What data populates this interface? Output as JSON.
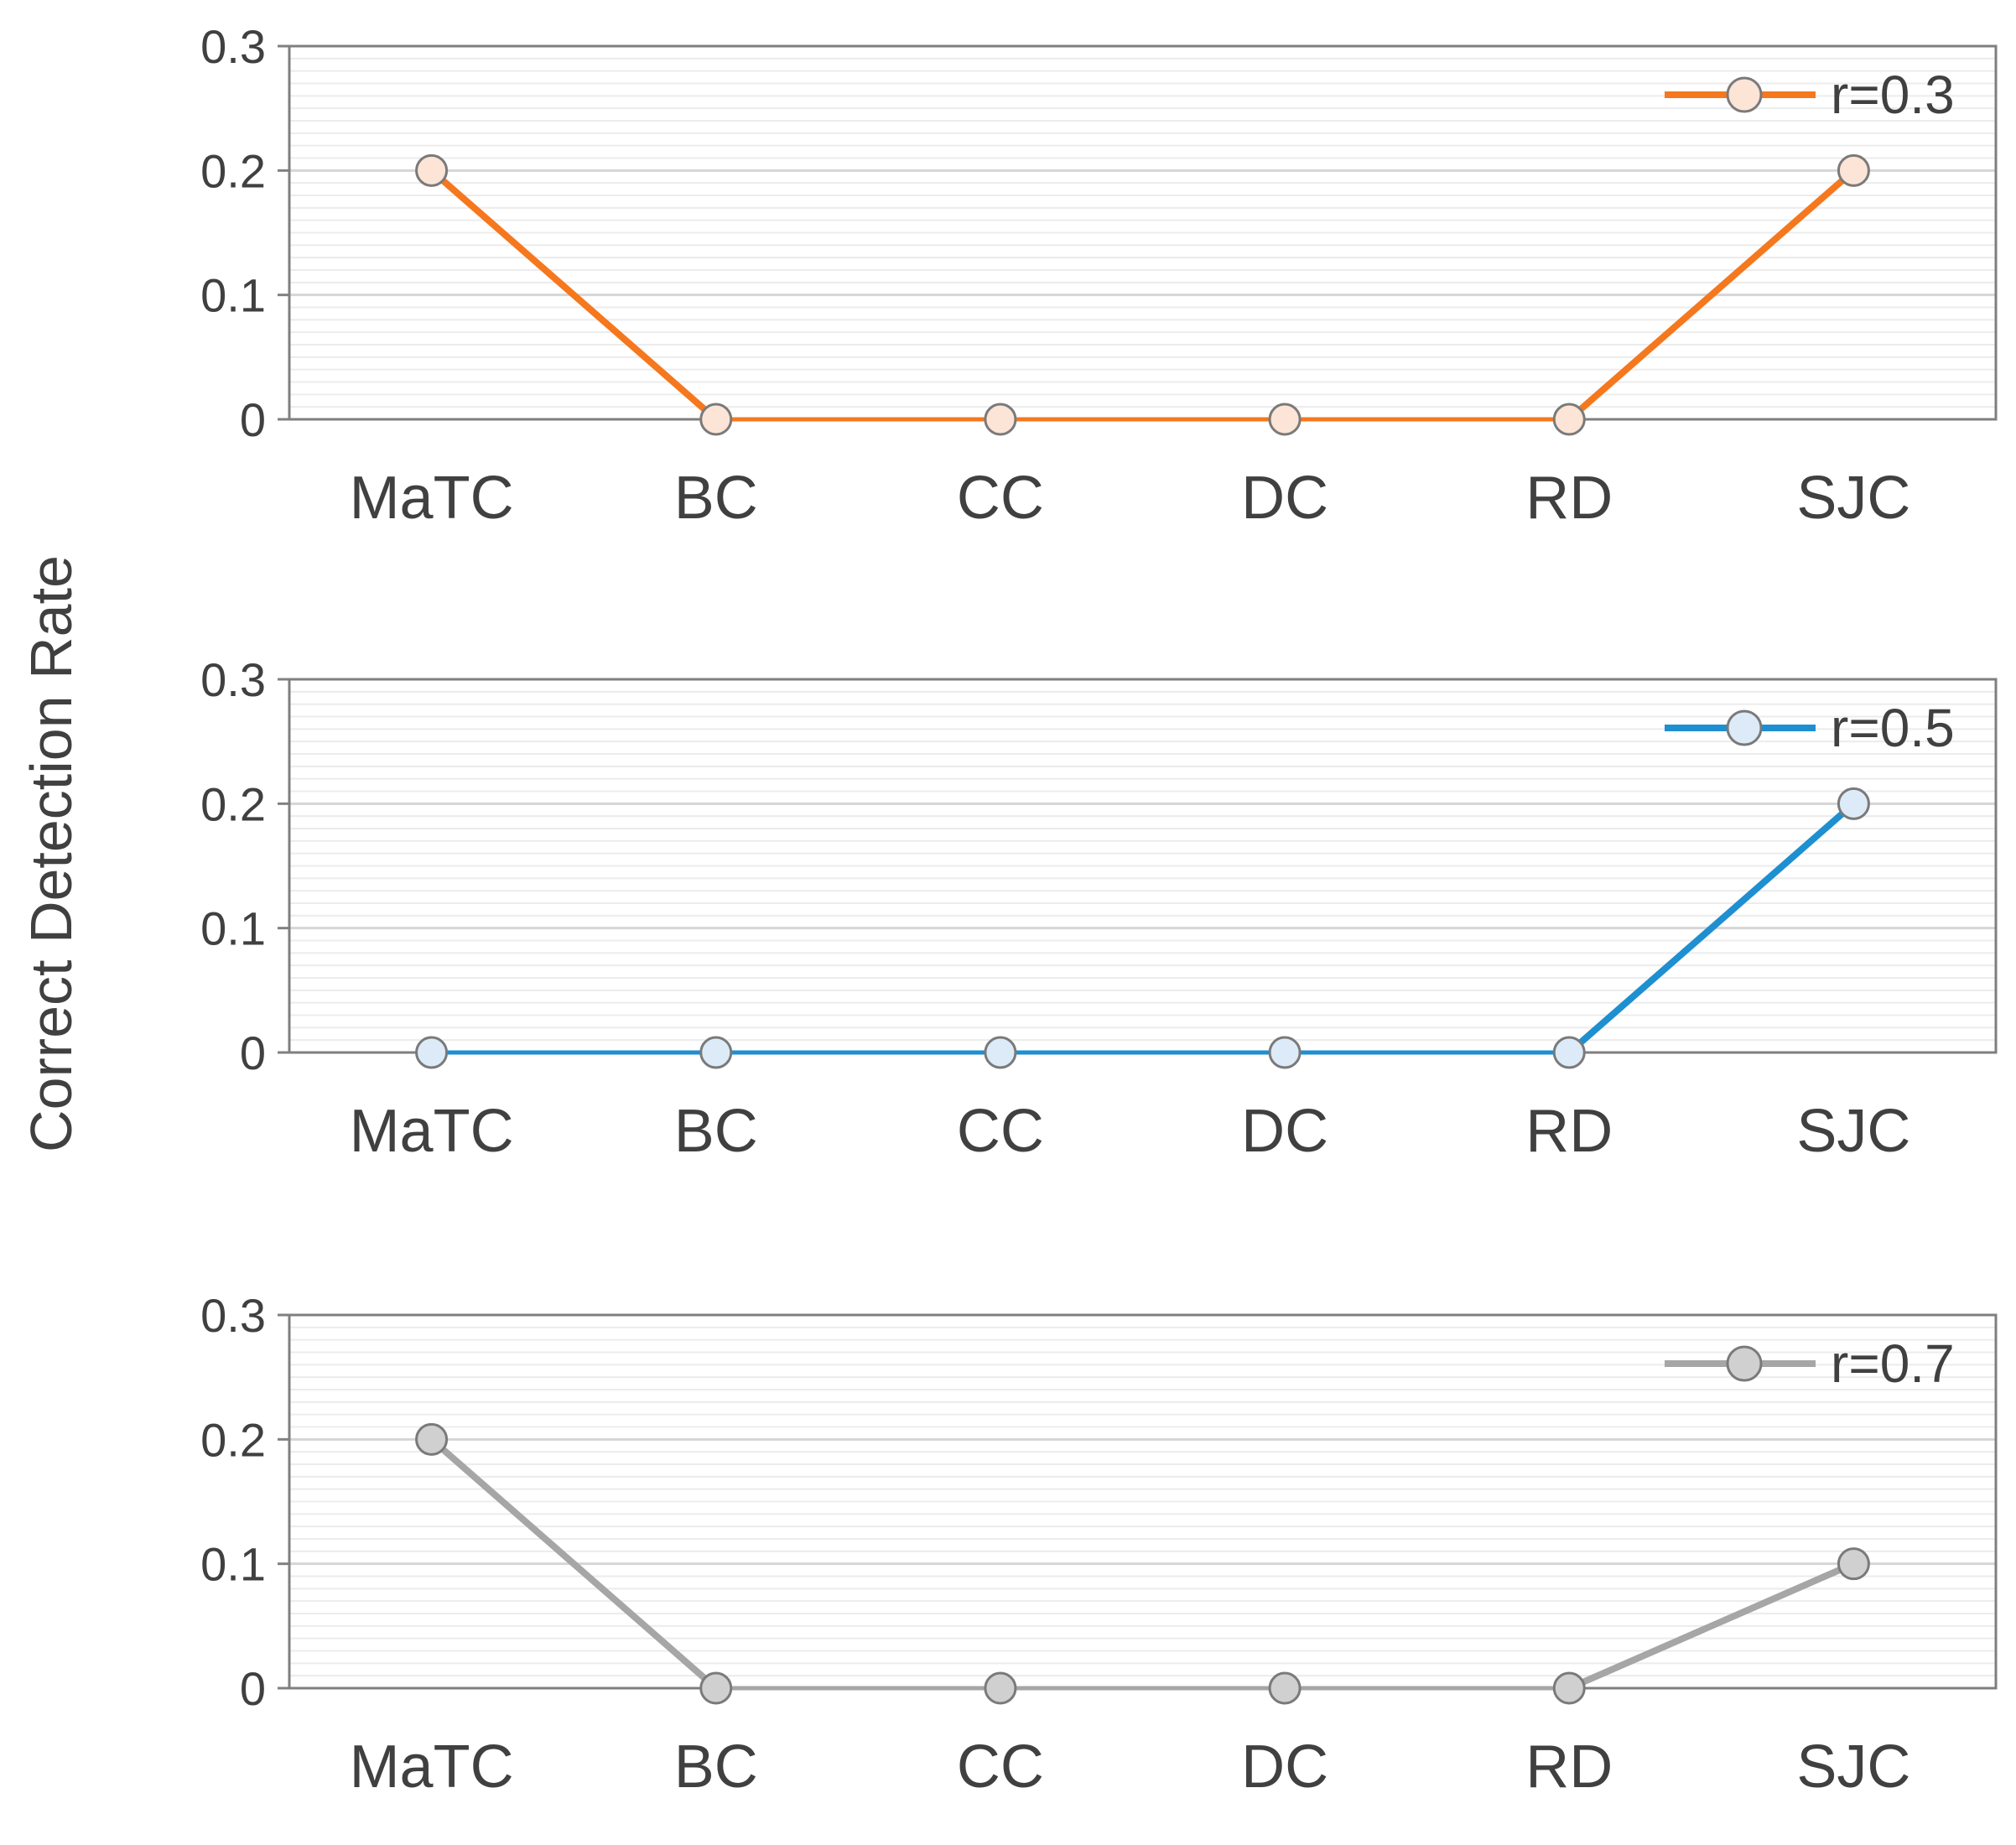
{
  "y_axis_label": "Correct Detection Rate",
  "chart_data": [
    {
      "type": "line",
      "categories": [
        "MaTC",
        "BC",
        "CC",
        "DC",
        "RD",
        "SJC"
      ],
      "series": [
        {
          "name": "r=0.3",
          "values": [
            0.2,
            0,
            0,
            0,
            0,
            0.2
          ]
        }
      ],
      "yticks": [
        "0",
        "0.1",
        "0.2",
        "0.3"
      ],
      "ylim": [
        0,
        0.3
      ],
      "ylabel": "Correct Detection Rate",
      "grid": true,
      "legend_position": "top-right",
      "line_color": "#F5781E",
      "marker_fill": "#FCE4D6"
    },
    {
      "type": "line",
      "categories": [
        "MaTC",
        "BC",
        "CC",
        "DC",
        "RD",
        "SJC"
      ],
      "series": [
        {
          "name": "r=0.5",
          "values": [
            0,
            0,
            0,
            0,
            0,
            0.2
          ]
        }
      ],
      "yticks": [
        "0",
        "0.1",
        "0.2",
        "0.3"
      ],
      "ylim": [
        0,
        0.3
      ],
      "ylabel": "Correct Detection Rate",
      "grid": true,
      "legend_position": "top-right",
      "line_color": "#1E8FD0",
      "marker_fill": "#DCEBF7"
    },
    {
      "type": "line",
      "categories": [
        "MaTC",
        "BC",
        "CC",
        "DC",
        "RD",
        "SJC"
      ],
      "series": [
        {
          "name": "r=0.7",
          "values": [
            0.2,
            0,
            0,
            0,
            0,
            0.1
          ]
        }
      ],
      "yticks": [
        "0",
        "0.1",
        "0.2",
        "0.3"
      ],
      "ylim": [
        0,
        0.3
      ],
      "ylabel": "Correct Detection Rate",
      "grid": true,
      "legend_position": "top-right",
      "line_color": "#A6A6A6",
      "marker_fill": "#D0D0D0"
    }
  ]
}
